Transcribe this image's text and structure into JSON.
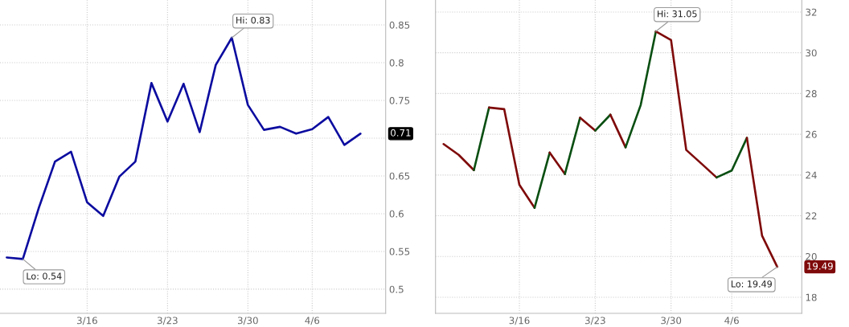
{
  "chart_data": [
    {
      "type": "line",
      "categories": [
        null,
        null,
        null,
        null,
        null,
        "3/16",
        null,
        null,
        null,
        null,
        "3/23",
        null,
        null,
        null,
        null,
        "3/30",
        null,
        null,
        null,
        "4/6",
        null,
        null,
        null
      ],
      "series": [
        {
          "color": "#0c0ca0",
          "values": [
            0.542,
            0.54,
            0.608,
            0.669,
            0.682,
            0.615,
            0.597,
            0.649,
            0.669,
            0.773,
            0.722,
            0.772,
            0.708,
            0.797,
            0.833,
            0.744,
            0.711,
            0.715,
            0.706,
            0.712,
            0.728,
            0.691,
            0.706
          ],
          "value_labels": [
            null,
            "Lo: 0.54",
            null,
            null,
            null,
            null,
            null,
            null,
            null,
            null,
            null,
            null,
            null,
            null,
            "Hi: 0.83",
            null,
            null,
            null,
            null,
            null,
            null,
            null,
            null
          ]
        }
      ],
      "ylim": [
        0.468,
        0.883
      ],
      "yticks": [
        0.5,
        0.55,
        0.6,
        0.65,
        {
          "value": 0.7,
          "label": null
        },
        0.75,
        0.8,
        0.85
      ],
      "grid": true,
      "annotations": [
        "0.71"
      ]
    },
    {
      "type": "line",
      "categories": [
        null,
        null,
        null,
        null,
        null,
        "3/16",
        null,
        null,
        null,
        null,
        "3/23",
        null,
        null,
        null,
        null,
        "3/30",
        null,
        null,
        null,
        "4/6",
        null,
        null,
        null
      ],
      "series": [
        {
          "color": "#7f0a0a",
          "values": [
            25.52,
            24.99,
            24.24,
            null,
            null,
            null,
            null,
            null,
            null,
            null,
            null,
            null,
            null,
            null,
            null,
            null,
            null,
            null,
            null,
            null,
            null,
            null,
            null
          ]
        },
        {
          "color": "#0a4f12",
          "values": [
            null,
            null,
            24.24,
            27.31,
            null,
            null,
            null,
            null,
            null,
            null,
            null,
            null,
            null,
            null,
            null,
            null,
            null,
            null,
            null,
            null,
            null,
            null,
            null
          ]
        },
        {
          "color": "#7f0a0a",
          "values": [
            null,
            null,
            null,
            27.31,
            27.23,
            23.52,
            22.39,
            null,
            null,
            null,
            null,
            null,
            null,
            null,
            null,
            null,
            null,
            null,
            null,
            null,
            null,
            null,
            null
          ]
        },
        {
          "color": "#0a4f12",
          "values": [
            null,
            null,
            null,
            null,
            null,
            null,
            22.39,
            25.1,
            null,
            null,
            null,
            null,
            null,
            null,
            null,
            null,
            null,
            null,
            null,
            null,
            null,
            null,
            null
          ]
        },
        {
          "color": "#7f0a0a",
          "values": [
            null,
            null,
            null,
            null,
            null,
            null,
            null,
            25.1,
            24.05,
            null,
            null,
            null,
            null,
            null,
            null,
            null,
            null,
            null,
            null,
            null,
            null,
            null,
            null
          ]
        },
        {
          "color": "#0a4f12",
          "values": [
            null,
            null,
            null,
            null,
            null,
            null,
            null,
            null,
            24.05,
            26.81,
            null,
            null,
            null,
            null,
            null,
            null,
            null,
            null,
            null,
            null,
            null,
            null,
            null
          ]
        },
        {
          "color": "#7f0a0a",
          "values": [
            null,
            null,
            null,
            null,
            null,
            null,
            null,
            null,
            null,
            26.81,
            26.18,
            null,
            null,
            null,
            null,
            null,
            null,
            null,
            null,
            null,
            null,
            null,
            null
          ]
        },
        {
          "color": "#0a4f12",
          "values": [
            null,
            null,
            null,
            null,
            null,
            null,
            null,
            null,
            null,
            null,
            26.18,
            26.96,
            null,
            null,
            null,
            null,
            null,
            null,
            null,
            null,
            null,
            null,
            null
          ]
        },
        {
          "color": "#7f0a0a",
          "values": [
            null,
            null,
            null,
            null,
            null,
            null,
            null,
            null,
            null,
            null,
            null,
            26.96,
            25.36,
            null,
            null,
            null,
            null,
            null,
            null,
            null,
            null,
            null,
            null
          ]
        },
        {
          "color": "#0a4f12",
          "values": [
            null,
            null,
            null,
            null,
            null,
            null,
            null,
            null,
            null,
            null,
            null,
            null,
            25.36,
            27.44,
            31.05,
            null,
            null,
            null,
            null,
            null,
            null,
            null,
            null
          ]
        },
        {
          "color": "#7f0a0a",
          "values": [
            null,
            null,
            null,
            null,
            null,
            null,
            null,
            null,
            null,
            null,
            null,
            null,
            null,
            null,
            31.05,
            30.62,
            25.23,
            24.56,
            23.88,
            null,
            null,
            null,
            null
          ],
          "value_labels": [
            null,
            null,
            null,
            null,
            null,
            null,
            null,
            null,
            null,
            null,
            null,
            null,
            null,
            null,
            "Hi: 31.05",
            null,
            null,
            null,
            null,
            null,
            null,
            null,
            null
          ]
        },
        {
          "color": "#0a4f12",
          "values": [
            null,
            null,
            null,
            null,
            null,
            null,
            null,
            null,
            null,
            null,
            null,
            null,
            null,
            null,
            null,
            null,
            null,
            null,
            23.88,
            24.22,
            25.82,
            null,
            null
          ]
        },
        {
          "color": "#7f0a0a",
          "values": [
            null,
            null,
            null,
            null,
            null,
            null,
            null,
            null,
            null,
            null,
            null,
            null,
            null,
            null,
            null,
            null,
            null,
            null,
            null,
            null,
            25.82,
            21.02,
            19.49
          ],
          "value_labels": [
            null,
            null,
            null,
            null,
            null,
            null,
            null,
            null,
            null,
            null,
            null,
            null,
            null,
            null,
            null,
            null,
            null,
            null,
            null,
            null,
            null,
            null,
            "Lo: 19.49"
          ]
        }
      ],
      "ylim": [
        17.21,
        32.59
      ],
      "yticks": [
        18,
        20,
        22,
        24,
        26,
        28,
        30,
        32
      ],
      "grid": true,
      "annotations": [
        "19.49"
      ]
    }
  ]
}
